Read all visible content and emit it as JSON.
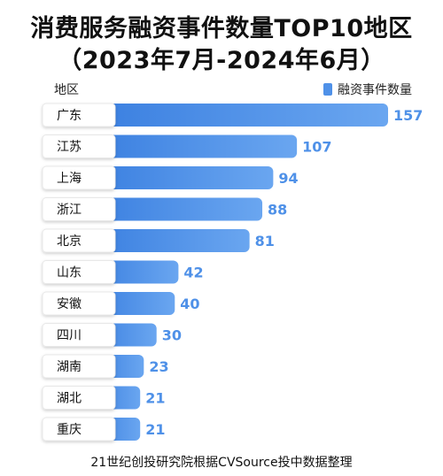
{
  "chart_data": {
    "type": "bar",
    "orientation": "horizontal",
    "title": "消费服务融资事件数量TOP10地区",
    "subtitle": "（2023年7月-2024年6月）",
    "category_header": "地区",
    "categories": [
      "广东",
      "江苏",
      "上海",
      "浙江",
      "北京",
      "山东",
      "安徽",
      "四川",
      "湖南",
      "湖北",
      "重庆"
    ],
    "series": [
      {
        "name": "融资事件数量",
        "values": [
          157,
          107,
          94,
          88,
          81,
          42,
          40,
          30,
          23,
          21,
          21
        ]
      }
    ],
    "xlim": [
      0,
      157
    ],
    "grid": false,
    "legend_position": "top-right",
    "source": "21世纪创投研究院根据CVSource投中数据整理"
  },
  "colors": {
    "bar": "#4f91e8",
    "bar_light": "#6aa6f0",
    "value_label": "#4f91e8",
    "label_bg": "#ffffff",
    "label_border": "#e8e8e8"
  }
}
